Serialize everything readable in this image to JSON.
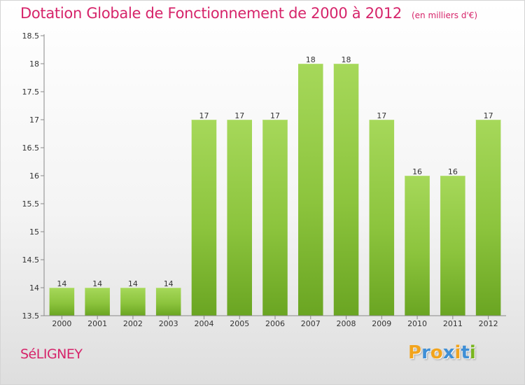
{
  "title": "Dotation Globale de Fonctionnement de 2000 à 2012",
  "subtitle": "(en milliers d'€)",
  "commune": "SéLIGNEY",
  "brand": {
    "letters": [
      "P",
      "r",
      "o",
      "x",
      "i",
      "t",
      "i"
    ],
    "colors": [
      "#f2a41d",
      "#3f8fd6",
      "#f2a41d",
      "#3f8fd6",
      "#f2a41d",
      "#3f8fd6",
      "#79b61f"
    ]
  },
  "chart_data": {
    "type": "bar",
    "title": "Dotation Globale de Fonctionnement de 2000 à 2012",
    "subtitle": "(en milliers d'€)",
    "xlabel": "",
    "ylabel": "",
    "categories": [
      "2000",
      "2001",
      "2002",
      "2003",
      "2004",
      "2005",
      "2006",
      "2007",
      "2008",
      "2009",
      "2010",
      "2011",
      "2012"
    ],
    "values": [
      14,
      14,
      14,
      14,
      17,
      17,
      17,
      18,
      18,
      17,
      16,
      16,
      17
    ],
    "ylim": [
      13.5,
      18.5
    ],
    "yticks": [
      "13.5",
      "14",
      "14.5",
      "15",
      "15.5",
      "16",
      "16.5",
      "17",
      "17.5",
      "18",
      "18.5"
    ],
    "grid": false,
    "colors": {
      "bar": "#8cc43d",
      "bar_dark": "#6aa522",
      "bar_light": "#a6d85a",
      "axis": "#888888"
    }
  }
}
